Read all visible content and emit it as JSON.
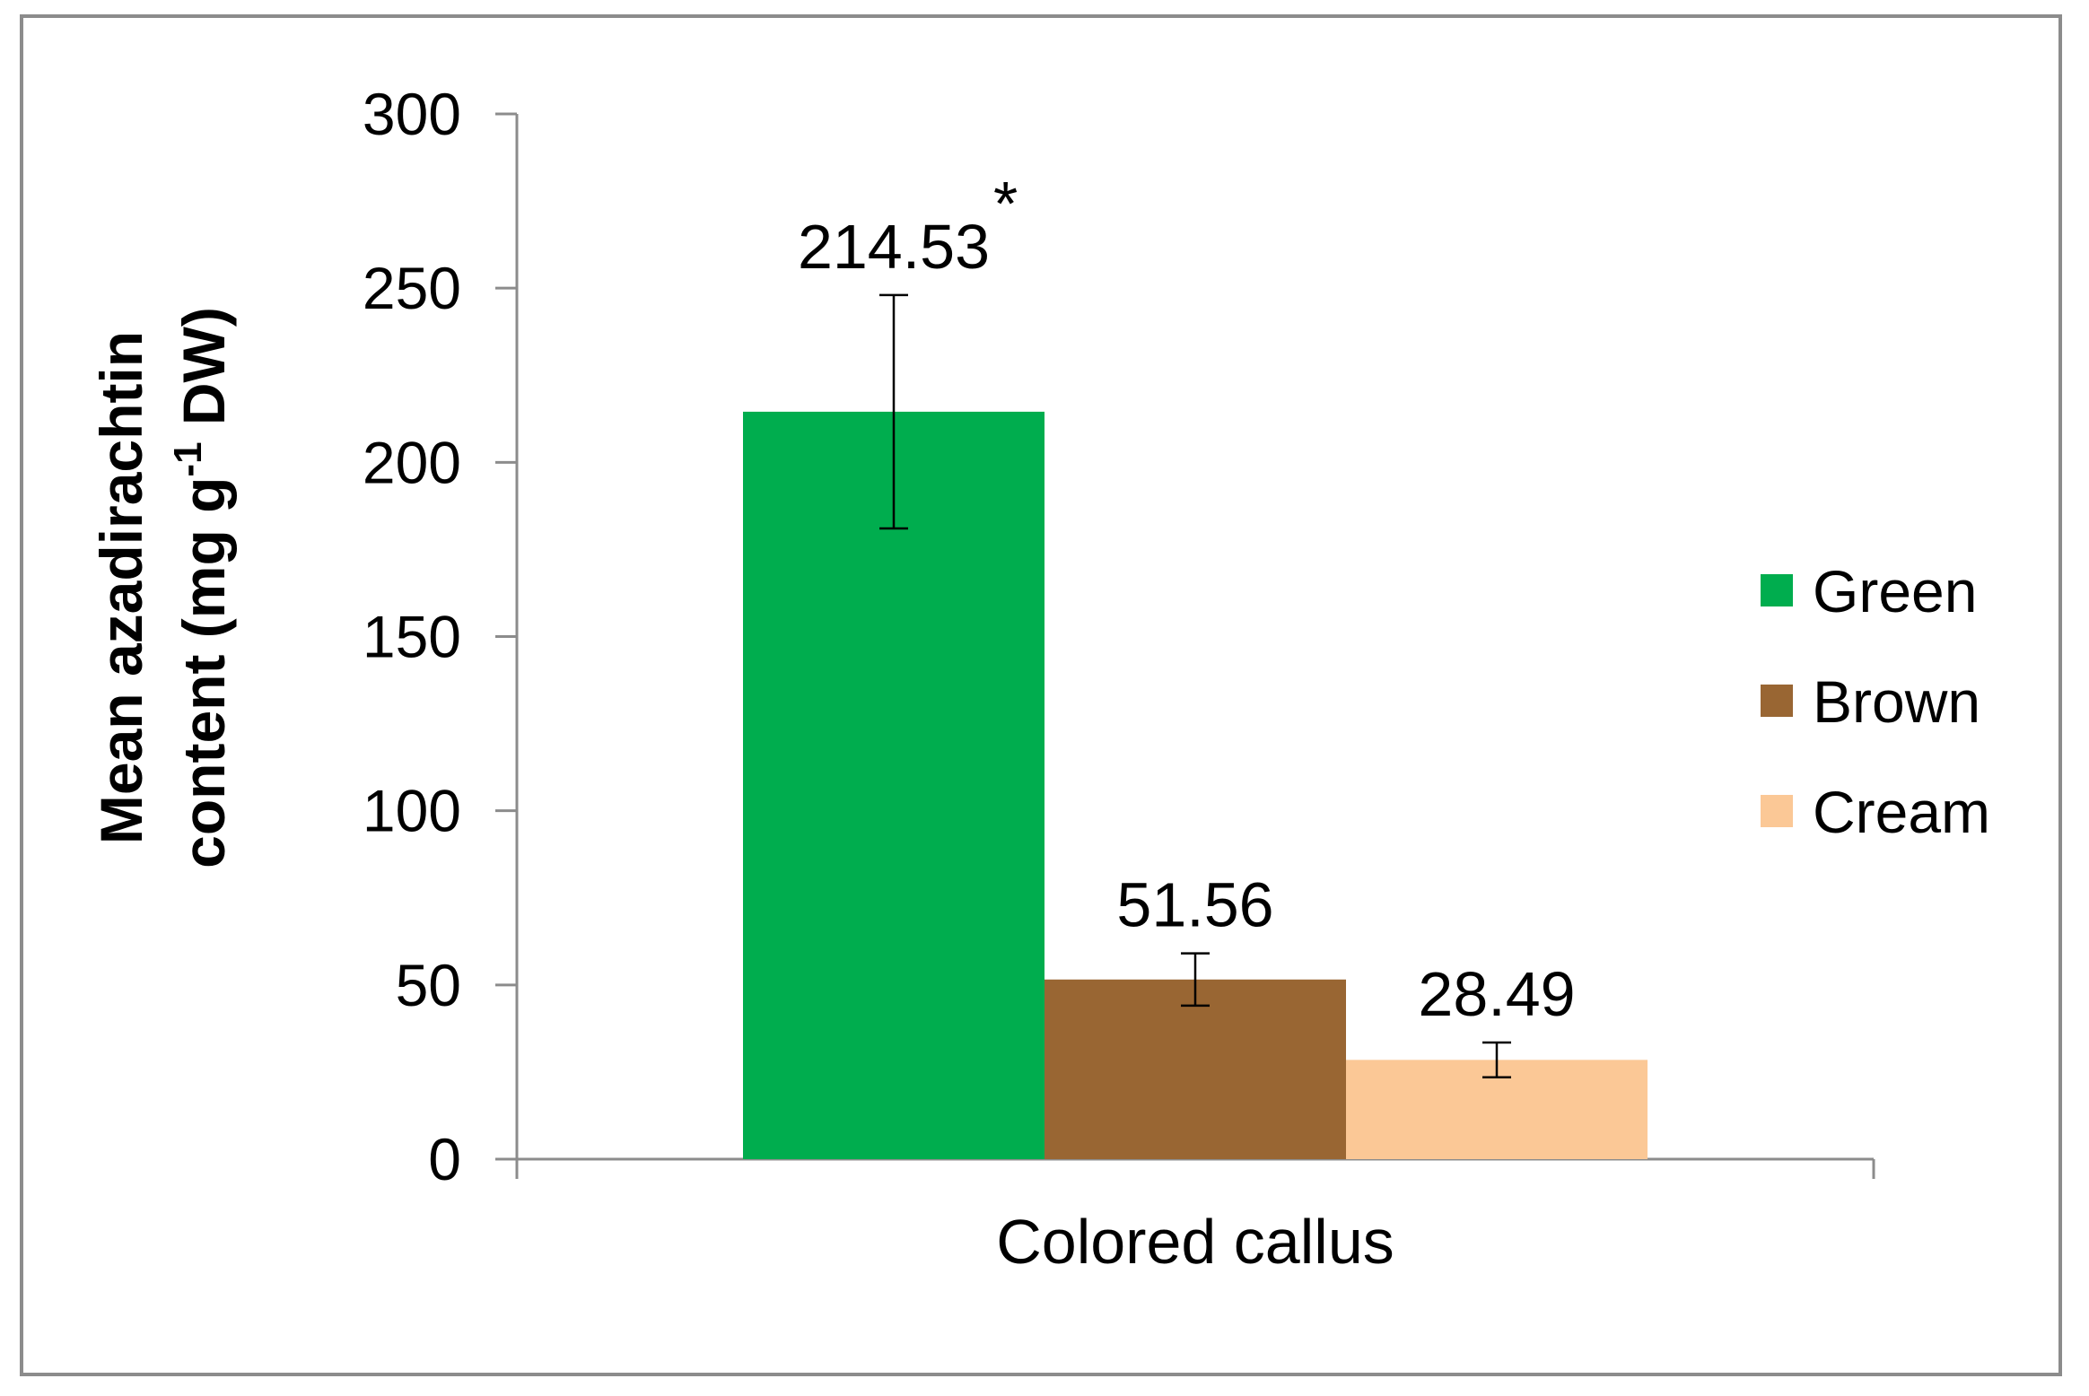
{
  "chart_data": {
    "type": "bar",
    "xlabel": "Colored callus",
    "ylabel_line1": "Mean azadirachtin",
    "ylabel_line2_prefix": "content  (mg g",
    "ylabel_line2_sup": "-1",
    "ylabel_line2_suffix": " DW)",
    "ylim": [
      0,
      300
    ],
    "yticks": [
      "0",
      "50",
      "100",
      "150",
      "200",
      "250",
      "300"
    ],
    "grid": false,
    "legend_position": "right",
    "series": [
      {
        "name": "Green",
        "value": 214.53,
        "error": 33.5,
        "label": "214.53",
        "annotation": "*",
        "color": "#00ad4e"
      },
      {
        "name": "Brown",
        "value": 51.56,
        "error": 7.5,
        "label": "51.56",
        "annotation": "",
        "color": "#996633"
      },
      {
        "name": "Cream",
        "value": 28.49,
        "error": 5,
        "label": "28.49",
        "annotation": "",
        "color": "#fbc896"
      }
    ]
  }
}
